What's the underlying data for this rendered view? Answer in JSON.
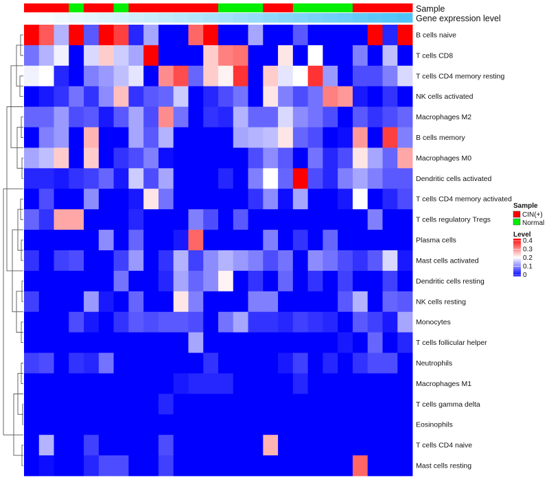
{
  "chart_data": {
    "type": "heatmap",
    "title": "",
    "annotation_labels": {
      "sample": "Sample",
      "gene_expression": "Gene expression level"
    },
    "rows": [
      "B cells naive",
      "T cells CD8",
      "T cells CD4 memory resting",
      "NK cells activated",
      "Macrophages M2",
      "B cells memory",
      "Macrophages M0",
      "Dendritic cells activated",
      "T cells CD4 memory activated",
      "T cells regulatory  Tregs",
      "Plasma cells",
      "Mast cells activated",
      "Dendritic cells resting",
      "NK cells resting",
      "Monocytes",
      "T cells follicular helper",
      "Neutrophils",
      "Macrophages M1",
      "T cells gamma delta",
      "Eosinophils",
      "T cells CD4 naive",
      "Mast cells resting"
    ],
    "sample_groups": [
      "CIN",
      "CIN",
      "CIN",
      "N",
      "CIN",
      "CIN",
      "N",
      "CIN",
      "CIN",
      "CIN",
      "CIN",
      "CIN",
      "CIN",
      "N",
      "N",
      "N",
      "CIN",
      "CIN",
      "N",
      "N",
      "N",
      "N",
      "CIN",
      "CIN",
      "CIN",
      "CIN"
    ],
    "expression_gradient": [
      0.0,
      0.04,
      0.08,
      0.12,
      0.16,
      0.2,
      0.24,
      0.28,
      0.32,
      0.36,
      0.4,
      0.44,
      0.48,
      0.52,
      0.56,
      0.6,
      0.64,
      0.68,
      0.72,
      0.76,
      0.8,
      0.84,
      0.88,
      0.92,
      0.96,
      1.0
    ],
    "values": [
      [
        0.4,
        0.33,
        0.14,
        0.4,
        0.07,
        0.4,
        0.35,
        0.03,
        0.13,
        0.0,
        0.0,
        0.32,
        0.4,
        0.0,
        0.0,
        0.13,
        0.0,
        0.0,
        0.07,
        0.0,
        0.0,
        0.0,
        0.0,
        0.4,
        0.03,
        0.4
      ],
      [
        0.09,
        0.14,
        0.19,
        0.0,
        0.17,
        0.24,
        0.16,
        0.13,
        0.4,
        0.0,
        0.0,
        0.0,
        0.24,
        0.3,
        0.31,
        0.0,
        0.0,
        0.22,
        0.0,
        0.2,
        0.0,
        0.0,
        0.1,
        0.0,
        0.15,
        0.0
      ],
      [
        0.19,
        0.2,
        0.03,
        0.0,
        0.1,
        0.12,
        0.15,
        0.18,
        0.0,
        0.29,
        0.34,
        0.08,
        0.24,
        0.21,
        0.36,
        0.0,
        0.24,
        0.18,
        0.2,
        0.36,
        0.12,
        0.0,
        0.06,
        0.06,
        0.1,
        0.17
      ],
      [
        0.0,
        0.02,
        0.04,
        0.09,
        0.04,
        0.11,
        0.25,
        0.04,
        0.07,
        0.08,
        0.16,
        0.0,
        0.03,
        0.06,
        0.09,
        0.0,
        0.22,
        0.1,
        0.06,
        0.09,
        0.3,
        0.28,
        0.02,
        0.0,
        0.04,
        0.0
      ],
      [
        0.08,
        0.08,
        0.12,
        0.06,
        0.07,
        0.02,
        0.07,
        0.13,
        0.06,
        0.29,
        0.09,
        0.0,
        0.04,
        0.03,
        0.14,
        0.08,
        0.08,
        0.17,
        0.11,
        0.09,
        0.06,
        0.0,
        0.07,
        0.04,
        0.06,
        0.08
      ],
      [
        0.0,
        0.1,
        0.12,
        0.0,
        0.26,
        0.0,
        0.0,
        0.13,
        0.07,
        0.14,
        0.0,
        0.0,
        0.0,
        0.0,
        0.13,
        0.14,
        0.15,
        0.22,
        0.08,
        0.06,
        0.0,
        0.01,
        0.28,
        0.0,
        0.35,
        0.1
      ],
      [
        0.13,
        0.15,
        0.24,
        0.0,
        0.24,
        0.0,
        0.04,
        0.06,
        0.1,
        0.01,
        0.0,
        0.0,
        0.0,
        0.0,
        0.0,
        0.06,
        0.11,
        0.07,
        0.0,
        0.09,
        0.03,
        0.06,
        0.22,
        0.13,
        0.08,
        0.27
      ],
      [
        0.03,
        0.03,
        0.02,
        0.04,
        0.05,
        0.08,
        0.02,
        0.16,
        0.06,
        0.13,
        0.0,
        0.0,
        0.0,
        0.03,
        0.0,
        0.1,
        0.2,
        0.08,
        0.4,
        0.06,
        0.03,
        0.1,
        0.13,
        0.1,
        0.07,
        0.07
      ],
      [
        0.0,
        0.06,
        0.0,
        0.0,
        0.11,
        0.0,
        0.0,
        0.02,
        0.22,
        0.09,
        0.0,
        0.0,
        0.0,
        0.0,
        0.0,
        0.04,
        0.11,
        0.01,
        0.13,
        0.0,
        0.0,
        0.02,
        0.2,
        0.0,
        0.03,
        0.06
      ],
      [
        0.08,
        0.04,
        0.27,
        0.27,
        0.0,
        0.0,
        0.0,
        0.03,
        0.0,
        0.0,
        0.0,
        0.1,
        0.06,
        0.0,
        0.07,
        0.0,
        0.0,
        0.0,
        0.0,
        0.0,
        0.0,
        0.0,
        0.0,
        0.1,
        0.0,
        0.0
      ],
      [
        0.0,
        0.0,
        0.0,
        0.0,
        0.0,
        0.11,
        0.0,
        0.08,
        0.0,
        0.0,
        0.02,
        0.32,
        0.0,
        0.0,
        0.0,
        0.0,
        0.1,
        0.0,
        0.04,
        0.0,
        0.08,
        0.0,
        0.0,
        0.0,
        0.0,
        0.0
      ],
      [
        0.04,
        0.0,
        0.05,
        0.06,
        0.0,
        0.0,
        0.05,
        0.12,
        0.0,
        0.04,
        0.14,
        0.05,
        0.11,
        0.14,
        0.12,
        0.1,
        0.06,
        0.09,
        0.0,
        0.11,
        0.09,
        0.06,
        0.04,
        0.07,
        0.17,
        0.02
      ],
      [
        0.0,
        0.0,
        0.0,
        0.0,
        0.0,
        0.0,
        0.09,
        0.0,
        0.0,
        0.03,
        0.13,
        0.08,
        0.11,
        0.21,
        0.0,
        0.04,
        0.0,
        0.08,
        0.0,
        0.04,
        0.0,
        0.05,
        0.0,
        0.0,
        0.05,
        0.0
      ],
      [
        0.05,
        0.0,
        0.0,
        0.0,
        0.12,
        0.02,
        0.0,
        0.08,
        0.0,
        0.0,
        0.22,
        0.1,
        0.0,
        0.0,
        0.0,
        0.1,
        0.1,
        0.0,
        0.0,
        0.0,
        0.0,
        0.07,
        0.14,
        0.0,
        0.08,
        0.07
      ],
      [
        0.0,
        0.0,
        0.0,
        0.06,
        0.02,
        0.0,
        0.04,
        0.07,
        0.06,
        0.07,
        0.07,
        0.06,
        0.0,
        0.09,
        0.13,
        0.04,
        0.04,
        0.03,
        0.05,
        0.04,
        0.03,
        0.0,
        0.07,
        0.05,
        0.02,
        0.13
      ],
      [
        0.0,
        0.0,
        0.0,
        0.0,
        0.0,
        0.0,
        0.0,
        0.0,
        0.0,
        0.0,
        0.0,
        0.13,
        0.0,
        0.0,
        0.0,
        0.0,
        0.0,
        0.0,
        0.0,
        0.0,
        0.0,
        0.02,
        0.0,
        0.08,
        0.0,
        0.03
      ],
      [
        0.05,
        0.06,
        0.0,
        0.04,
        0.03,
        0.09,
        0.0,
        0.0,
        0.0,
        0.0,
        0.0,
        0.0,
        0.04,
        0.0,
        0.0,
        0.0,
        0.0,
        0.02,
        0.05,
        0.0,
        0.03,
        0.0,
        0.04,
        0.06,
        0.06,
        0.0
      ],
      [
        0.0,
        0.0,
        0.0,
        0.0,
        0.0,
        0.0,
        0.0,
        0.0,
        0.0,
        0.0,
        0.02,
        0.03,
        0.03,
        0.03,
        0.0,
        0.0,
        0.0,
        0.0,
        0.03,
        0.0,
        0.0,
        0.0,
        0.0,
        0.0,
        0.0,
        0.0
      ],
      [
        0.0,
        0.0,
        0.0,
        0.0,
        0.0,
        0.0,
        0.0,
        0.0,
        0.0,
        0.03,
        0.0,
        0.0,
        0.0,
        0.0,
        0.0,
        0.0,
        0.0,
        0.0,
        0.0,
        0.0,
        0.0,
        0.0,
        0.0,
        0.0,
        0.0,
        0.0
      ],
      [
        0.0,
        0.0,
        0.0,
        0.0,
        0.0,
        0.0,
        0.0,
        0.0,
        0.0,
        0.0,
        0.0,
        0.0,
        0.0,
        0.0,
        0.0,
        0.0,
        0.0,
        0.0,
        0.0,
        0.0,
        0.0,
        0.0,
        0.0,
        0.0,
        0.0,
        0.0
      ],
      [
        0.0,
        0.14,
        0.0,
        0.0,
        0.05,
        0.0,
        0.0,
        0.0,
        0.0,
        0.06,
        0.0,
        0.0,
        0.0,
        0.0,
        0.0,
        0.0,
        0.26,
        0.0,
        0.0,
        0.0,
        0.0,
        0.0,
        0.0,
        0.0,
        0.0,
        0.0
      ],
      [
        0.0,
        0.01,
        0.0,
        0.0,
        0.03,
        0.06,
        0.06,
        0.0,
        0.0,
        0.05,
        0.0,
        0.0,
        0.0,
        0.0,
        0.0,
        0.0,
        0.0,
        0.0,
        0.0,
        0.0,
        0.0,
        0.0,
        0.32,
        0.0,
        0.0,
        0.0
      ]
    ],
    "legend": {
      "sample_title": "Sample",
      "sample_items": [
        {
          "key": "CIN",
          "label": "CIN(+)",
          "color": "#ff0000"
        },
        {
          "key": "N",
          "label": "Normal",
          "color": "#00ee00"
        }
      ],
      "level_title": "Level",
      "level_ticks": [
        "0.4",
        "0.3",
        "0.2",
        "0.1",
        "0"
      ],
      "level_range": [
        0,
        0.4
      ]
    },
    "color_scale": {
      "low": "#0000ff",
      "mid": "#ffffff",
      "high": "#ff0000",
      "domain": [
        0,
        0.2,
        0.4
      ]
    },
    "gradient_colors": {
      "start": "#ffffff",
      "end": "#4fc3f7"
    }
  }
}
